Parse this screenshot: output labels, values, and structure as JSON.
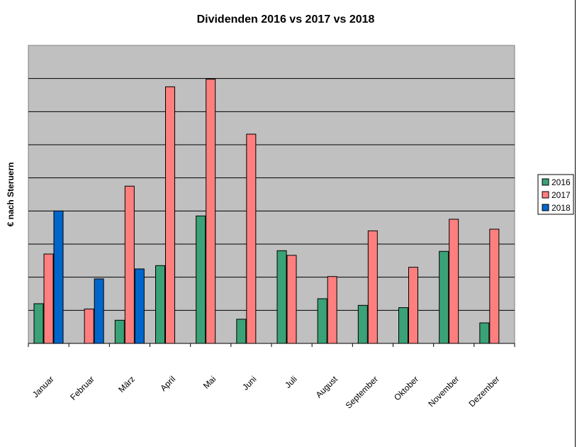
{
  "chart_data": {
    "type": "bar",
    "title": "Dividenden 2016 vs 2017 vs 2018",
    "xlabel": "",
    "ylabel": "€ nach Steruern",
    "categories": [
      "Januar",
      "Februar",
      "März",
      "April",
      "Mai",
      "Juni",
      "Juli",
      "August",
      "September",
      "Oktober",
      "November",
      "Dezember"
    ],
    "series": [
      {
        "name": "2016",
        "color": "#3aa276",
        "values": [
          1.2,
          null,
          0.7,
          2.35,
          3.85,
          0.73,
          2.8,
          1.35,
          1.15,
          1.08,
          2.78,
          0.62
        ]
      },
      {
        "name": "2017",
        "color": "#ff7f7f",
        "values": [
          2.7,
          1.04,
          4.75,
          7.75,
          7.98,
          6.32,
          2.66,
          2.02,
          3.4,
          2.3,
          3.75,
          3.45
        ]
      },
      {
        "name": "2018",
        "color": "#0066cc",
        "values": [
          4.0,
          1.95,
          2.25,
          null,
          null,
          null,
          null,
          null,
          null,
          null,
          null,
          null
        ]
      }
    ],
    "ylim": [
      0,
      9
    ],
    "y_gridlines": 9,
    "grid": true,
    "plot_background": "#c0c0c0",
    "legend_position": "right"
  }
}
